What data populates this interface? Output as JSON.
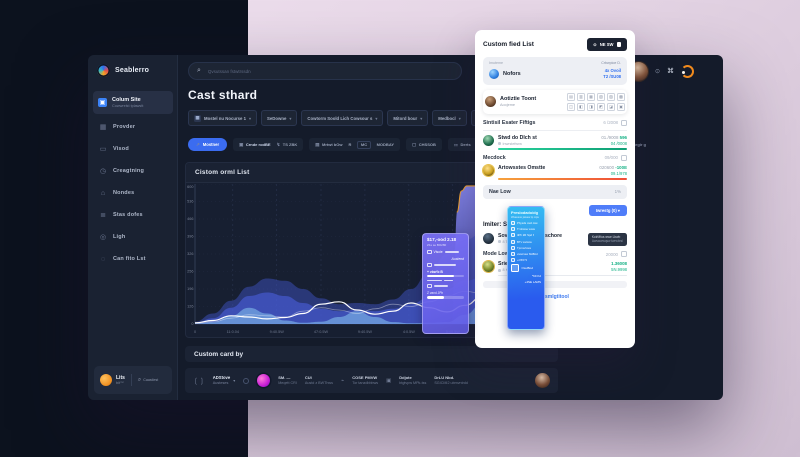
{
  "sidebar": {
    "logo": {
      "name": "Seablerro"
    },
    "active": {
      "label": "Colum Site",
      "sub": "Cowwrelst tplawstt"
    },
    "items": [
      {
        "label": "Provder",
        "icon": "▦"
      },
      {
        "label": "Visod",
        "icon": "▭"
      },
      {
        "label": "Creagtning",
        "icon": "◷"
      },
      {
        "label": "Nondes",
        "icon": "⌂"
      },
      {
        "label": "Stas dofes",
        "icon": "≣"
      },
      {
        "label": "Ligh",
        "icon": "◎"
      },
      {
        "label": "Can fito Lst",
        "icon": "◌"
      }
    ],
    "footer": {
      "title": "Lits",
      "sub": "bit™",
      "search": "Caastlest"
    }
  },
  "topbar": {
    "search_placeholder": "Qvsutssan fstwtrssdn"
  },
  "header": {
    "title": "Cast sthard",
    "filters": [
      {
        "label": "Mostel nu Nocurse 1",
        "lead": "▦",
        "chev": true
      },
      {
        "label": "SeDowne",
        "chev": true
      },
      {
        "label": "Cowtorm Soold Lich Cowsour s",
        "chev": true
      },
      {
        "label": "Mitord bour",
        "chev": true
      },
      {
        "label": "Medbocl",
        "chev": true
      },
      {
        "label": "Codrlorm, BclitKblos stre 4",
        "chev": true
      },
      {
        "label": "Liston",
        "chev": false
      }
    ]
  },
  "toolbar": {
    "primary": {
      "label": "Mostner",
      "icon": "↗"
    },
    "groups": [
      {
        "items": [
          {
            "label": "Crnde rodBE",
            "icon": "▣",
            "active": true
          },
          {
            "label": "TS ZBK",
            "icon": "↯"
          }
        ]
      },
      {
        "items": [
          {
            "label": "Mrtwt bOw",
            "icon": "▤"
          },
          {
            "label": "R"
          },
          {
            "label": "MC",
            "boxed": true
          },
          {
            "label": "MODBAY"
          }
        ]
      },
      {
        "items": [
          {
            "label": "CHSSOB",
            "icon": "▢"
          }
        ]
      },
      {
        "items": [
          {
            "label": "Derts",
            "icon": "⚏"
          },
          {
            "label": "G'29"
          },
          {
            "label": "Rezses"
          }
        ]
      }
    ],
    "right": {
      "label": "ITJWegir g",
      "icon": "◴"
    }
  },
  "chart": {
    "title": "Cistom orml List",
    "chart_data": {
      "type": "area",
      "title": "Cistom orml List",
      "ylim": [
        0,
        600
      ],
      "yticks": [
        "600",
        "536",
        "466",
        "396",
        "326",
        "256",
        "196",
        "126",
        "0"
      ],
      "xticks": [
        {
          "label": "0",
          "pos": 0
        },
        {
          "label": "11:0.04",
          "pos": 10.5
        },
        {
          "label": "9:40.5W",
          "pos": 22.7
        },
        {
          "label": "47:0.5W",
          "pos": 35
        },
        {
          "label": "9:40.5W",
          "pos": 47.2
        },
        {
          "label": "4:0.5W",
          "pos": 59.4
        },
        {
          "label": "5:40.5W",
          "pos": 71.6
        },
        {
          "label": "14:0.5W",
          "pos": 83.8
        },
        {
          "label": "41:0.5W",
          "pos": 96
        },
        {
          "label": "1",
          "pos": 100
        }
      ],
      "x": [
        0,
        5,
        10,
        15,
        20,
        25,
        30,
        35,
        40,
        45,
        50,
        55,
        60,
        65,
        70,
        75,
        80,
        85,
        90,
        95,
        100
      ],
      "series": [
        {
          "name": "back",
          "kind": "area",
          "color": "#3e51c0",
          "opacity": 0.5,
          "values": [
            10,
            45,
            100,
            160,
            195,
            185,
            150,
            110,
            85,
            90,
            85,
            105,
            150,
            220,
            300,
            360,
            390,
            385,
            340,
            270,
            210
          ]
        },
        {
          "name": "mid",
          "kind": "area",
          "color": "#4c63e8",
          "opacity": 0.55,
          "values": [
            5,
            25,
            70,
            120,
            135,
            120,
            90,
            65,
            55,
            60,
            55,
            65,
            85,
            115,
            150,
            185,
            200,
            170,
            130,
            150,
            190
          ]
        },
        {
          "name": "front",
          "kind": "area",
          "color": "#8fd4f8",
          "opacity": 0.5,
          "values": [
            2,
            8,
            35,
            70,
            45,
            15,
            5,
            10,
            30,
            55,
            30,
            8,
            3,
            5,
            8,
            40,
            90,
            120,
            60,
            20,
            5
          ]
        },
        {
          "name": "line-faint",
          "kind": "line",
          "color": "rgba(255,255,255,0.4)",
          "width": 0.8,
          "values": [
            2,
            10,
            25,
            40,
            35,
            30,
            55,
            70,
            60,
            45,
            65,
            85,
            75,
            95,
            120,
            140,
            130,
            160,
            190,
            220,
            260
          ]
        },
        {
          "name": "line-main",
          "kind": "line",
          "color": "#ffffff",
          "width": 1.2,
          "values": [
            5,
            15,
            35,
            30,
            22,
            28,
            45,
            85,
            95,
            60,
            42,
            55,
            90,
            70,
            52,
            80,
            120,
            100,
            145,
            185,
            230
          ]
        }
      ],
      "band": {
        "x": [
          71.5,
          72,
          72.8,
          74,
          75.5,
          81,
          84,
          87,
          90,
          93,
          96,
          98,
          100
        ],
        "top": [
          0,
          260,
          480,
          570,
          592,
          592,
          540,
          460,
          380,
          305,
          250,
          220,
          205
        ],
        "color_top": "#8b8cf8",
        "color_bottom": "#343a8a",
        "edge_color": "#f0a236"
      }
    },
    "tooltip_purple": {
      "title": "$17,-ood 2.18",
      "subtitle": "Z1s se BO280",
      "row1": "Visoie",
      "btn": "Austend",
      "mid": "+ vbw'b B",
      "foot": "Z vand JPh"
    },
    "tooltip_blue": {
      "title": "Preslodadoidg",
      "subtitle": "Wsaveve jawew tp cqw",
      "rows": [
        "Pbysds cwd csw",
        "Tl sbwse www",
        "4Ph 2R Spd b",
        "BTv wvtssw",
        "Tjst sufows",
        "vwwrssw MdBcd",
        "+C59'74"
      ],
      "box": "OsulBod",
      "foot1": "*69 Kd",
      "foot2": "+4SE LAMS"
    }
  },
  "bottom": {
    "title": "Custom card by",
    "dropdown": {
      "top": "ADStove",
      "sub": "Austeses"
    },
    "cols": [
      {
        "top": "SM. —",
        "sub": "Meqett CRI"
      },
      {
        "top": "CUI",
        "sub": "Austd z BWThws"
      },
      {
        "top": "COSE PMVW",
        "sub": "Tor tanzdbbbws",
        "icon": "⌁"
      },
      {
        "top": "Ddjote",
        "sub": "btgtvpw MPk-tss",
        "icon": "▣"
      },
      {
        "top": "DrLU Nbd.",
        "sub": "SGICMI2 ubmvntrdd"
      }
    ]
  },
  "panel": {
    "title": "Custom fied List",
    "button": {
      "label": "NE SW",
      "icon": "⊙"
    },
    "notif": {
      "tag_left": "Imuteme",
      "tag_right": "Crbwpioe D.",
      "name": "Nofors",
      "link1": "4x Ovoil",
      "link2": "T2 /SU08"
    },
    "profile": {
      "name": "Aotiztie Toont",
      "sub": "Aoojeme",
      "icons": [
        "▤",
        "▥",
        "▦",
        "▧",
        "▨",
        "▩",
        "◫",
        "◧",
        "◨",
        "◩",
        "◪",
        "▣"
      ]
    },
    "row_fittings": {
      "label": "Sintisil Esater Fiftigs",
      "value": "6 /2008"
    },
    "row_stwd": {
      "name": "Stwd do Dlch st",
      "sub": "Inwrstefwrw",
      "v1": "01./9008",
      "v2": "596",
      "v3": "04 /0008"
    },
    "row_mecdock": {
      "label": "Mecdock",
      "value": "09/000"
    },
    "row_artow": {
      "name": "Artowsstes Omstte",
      "v1": "020600",
      "v2": "-100E",
      "v3": "09.1/978"
    },
    "row_naelow": {
      "label": "Nae Low",
      "value": "1%"
    },
    "btn_blue": "Iwrestg (0) ▾",
    "heading2": "Imiter: Solfors",
    "row_sove": {
      "name": "Sove fristriam Fire schore",
      "sub": "8 Twwsrew",
      "badge1": "KcIrMfus wwe Lbwb",
      "badge2": "Awswwwqsw twrwbrsl"
    },
    "row_modelow": {
      "label": "Mode Low",
      "value": "20000"
    },
    "row_sriecle": {
      "name": "Sriecle Dnl pistbve",
      "sub": "8 Iwwsew",
      "v1": "1.36008",
      "v2": "5N.9998"
    },
    "footer_link": "Osmlgtitool"
  }
}
